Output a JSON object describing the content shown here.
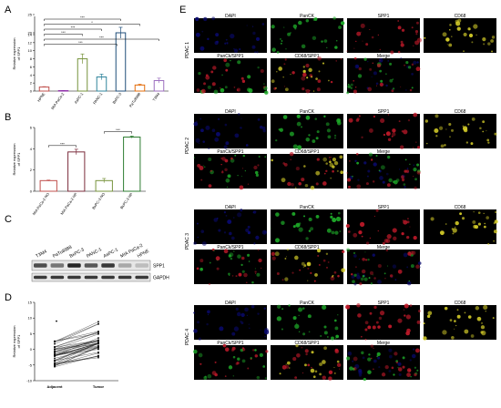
{
  "figure": {
    "panel_letters": [
      "A",
      "B",
      "C",
      "D",
      "E"
    ]
  },
  "chart_data": [
    {
      "panel": "A",
      "type": "bar",
      "ylabel": "Relative expression\nof SPP1",
      "ylim": [
        0,
        25
      ],
      "yticks": [
        0,
        2,
        4,
        6,
        8,
        10,
        12,
        14,
        20,
        25
      ],
      "categories": [
        "HPNE",
        "MIA PaCa-2",
        "AsPC-1",
        "PANC-1",
        "BxPC-3",
        "PaTu8988",
        "T3M4"
      ],
      "values": [
        1.0,
        0.1,
        8.0,
        3.5,
        20.0,
        1.5,
        2.6
      ],
      "errors": [
        0.1,
        0.05,
        1.2,
        0.7,
        1.5,
        0.2,
        0.6
      ],
      "colors": [
        "#c0504d",
        "#8b2aa6",
        "#77933c",
        "#31859c",
        "#1f4e79",
        "#e36c0a",
        "#9c6fbf"
      ],
      "significance": [
        "***",
        "*",
        "***",
        "***",
        "***",
        "***"
      ]
    },
    {
      "panel": "B",
      "type": "bar",
      "ylabel": "Relative expression\nof SPP1",
      "ylim": [
        0,
        6
      ],
      "yticks": [
        0,
        2,
        4,
        6
      ],
      "categories": [
        "MIA PaCa-2 NO",
        "MIA PaCa-2 HP",
        "BxPC-3 NO",
        "BxPC-3 HP"
      ],
      "values": [
        1.0,
        3.7,
        1.0,
        5.1
      ],
      "errors": [
        0.05,
        0.25,
        0.2,
        0.1
      ],
      "colors": [
        "#c0504d",
        "#7b2c3b",
        "#77933c",
        "#2e7d32"
      ],
      "significance": [
        "***",
        "***"
      ]
    },
    {
      "panel": "D",
      "type": "scatter",
      "ylabel": "Relative expression\nof SPP1",
      "ylim": [
        -10,
        15
      ],
      "yticks": [
        -10,
        -5,
        0,
        5,
        10,
        15
      ],
      "categories": [
        "Adjacent",
        "Tumor"
      ]
    }
  ],
  "blot": {
    "cell_lines": [
      "T3M4",
      "PaTu8988",
      "BxPC-3",
      "PANC-1",
      "AsPC-1",
      "MIA PaCa-2",
      "HPNE"
    ],
    "band_labels": [
      "SPP1",
      "GAPDH"
    ]
  },
  "micro": {
    "row_labels": [
      "PDAC 1",
      "PDAC 2",
      "PDAC 3",
      "PDAC 4"
    ],
    "top_titles": [
      "DAPI",
      "PanCK",
      "SPP1",
      "CD68"
    ],
    "bottom_titles": [
      "PanCk/SPP1",
      "CD68/SPP1",
      "Merge"
    ],
    "colors": {
      "dapi": "#0a0a6e",
      "panck": "#1fae2a",
      "spp1": "#c21a2a",
      "cd68": "#d9d12a",
      "bg": "#000000"
    }
  }
}
